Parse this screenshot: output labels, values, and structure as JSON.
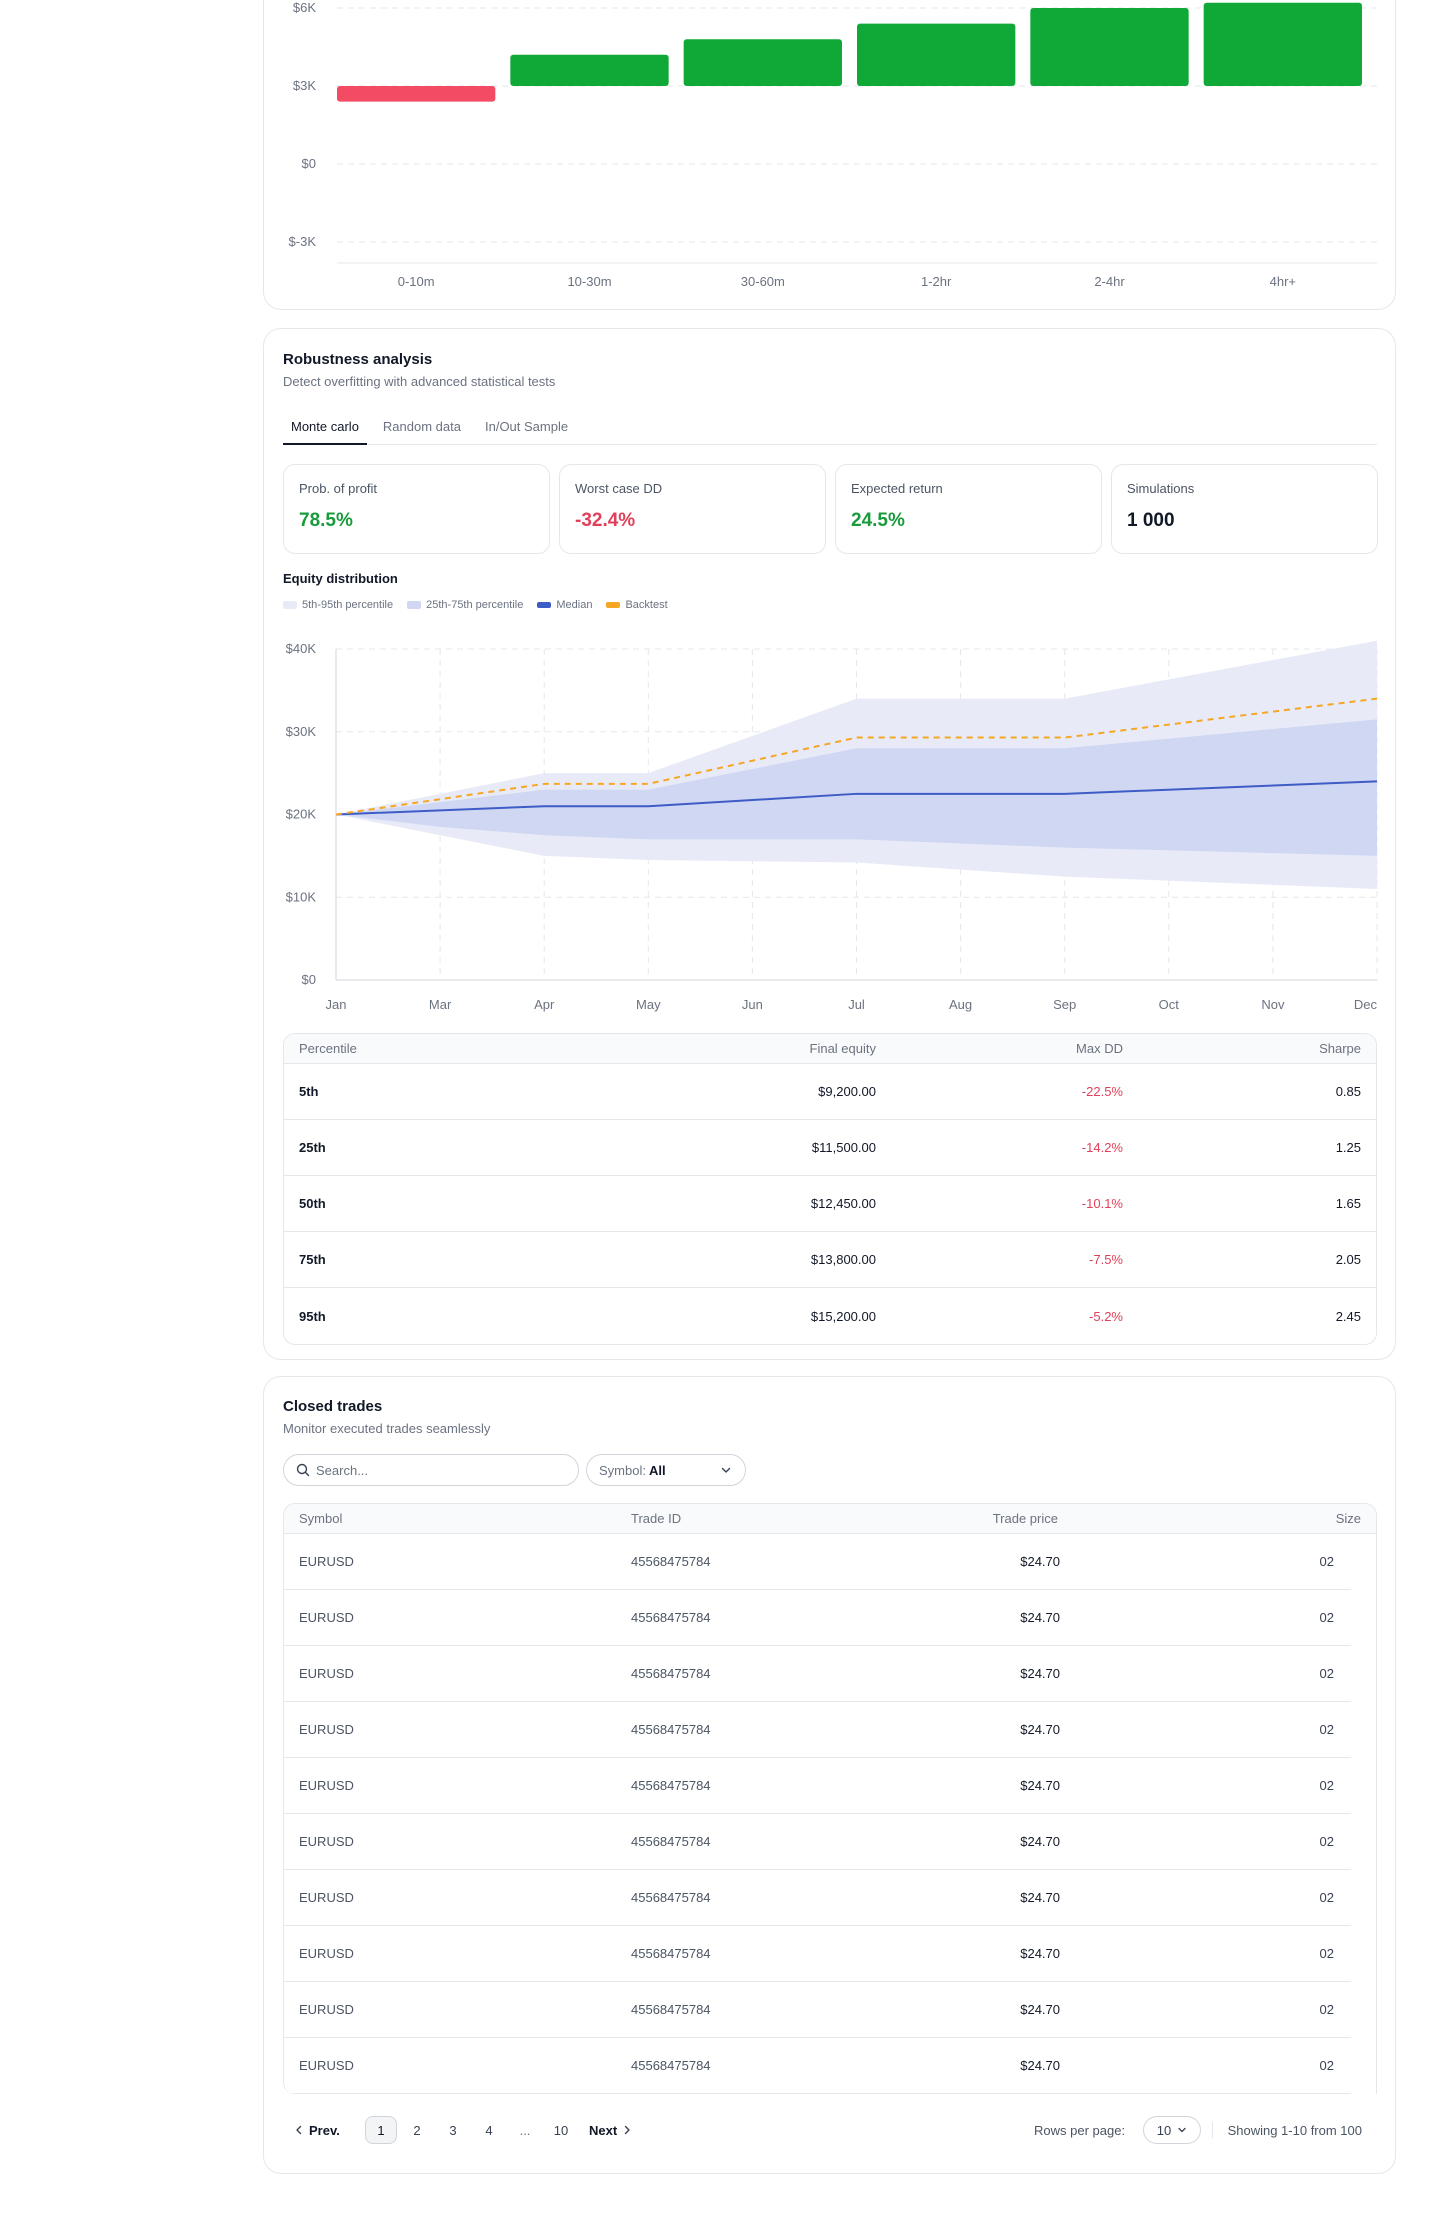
{
  "hold_chart": {
    "chart_data": {
      "type": "bar",
      "categories": [
        "0-10m",
        "10-30m",
        "30-60m",
        "1-2hr",
        "2-4hr",
        "4hr+"
      ],
      "values": [
        -600,
        1200,
        1800,
        2400,
        3000,
        3200
      ],
      "baseline": 3000,
      "ylim": [
        -3000,
        6000
      ],
      "yticks": [
        {
          "v": 6000,
          "label": "$6K"
        },
        {
          "v": 3000,
          "label": "$3K"
        },
        {
          "v": 0,
          "label": "$0"
        },
        {
          "v": -3000,
          "label": "$-3K"
        }
      ],
      "positive_color": "#10a937",
      "negative_color": "#f24b63",
      "grid": true
    }
  },
  "robustness": {
    "title": "Robustness analysis",
    "subtitle": "Detect overfitting with advanced statistical tests",
    "tabs": [
      {
        "label": "Monte carlo",
        "active": true
      },
      {
        "label": "Random data",
        "active": false
      },
      {
        "label": "In/Out Sample",
        "active": false
      }
    ],
    "stats": [
      {
        "label": "Prob. of profit",
        "value": "78.5%",
        "color": "#1a9b3b"
      },
      {
        "label": "Worst case DD",
        "value": "-32.4%",
        "color": "#e0405a"
      },
      {
        "label": "Expected return",
        "value": "24.5%",
        "color": "#1a9b3b"
      },
      {
        "label": "Simulations",
        "value": "1 000",
        "color": "#111827"
      }
    ],
    "section_label": "Equity distribution",
    "legend": [
      {
        "label": "5th-95th percentile",
        "color": "#e8ebf7"
      },
      {
        "label": "25th-75th percentile",
        "color": "#d0d7f3"
      },
      {
        "label": "Median",
        "color": "#3e5cc5"
      },
      {
        "label": "Backtest",
        "color": "#f5a623"
      }
    ],
    "chart_data": {
      "type": "area",
      "x_points": [
        0,
        1,
        2,
        3,
        4,
        5,
        6,
        7,
        8,
        9,
        10
      ],
      "x_labels": [
        "Jan",
        "Mar",
        "Apr",
        "May",
        "Jun",
        "Jul",
        "Aug",
        "Sep",
        "Oct",
        "Nov",
        "Dec"
      ],
      "ylim": [
        0,
        40000
      ],
      "yticks": [
        {
          "v": 40000,
          "label": "$40K"
        },
        {
          "v": 30000,
          "label": "$30K"
        },
        {
          "v": 20000,
          "label": "$20K"
        },
        {
          "v": 10000,
          "label": "$10K"
        },
        {
          "v": 0,
          "label": "$0"
        }
      ],
      "series": [
        {
          "name": "5th-95th percentile",
          "kind": "band",
          "x": [
            0,
            1,
            2,
            3,
            5,
            7,
            10
          ],
          "upper": [
            20000,
            22500,
            25000,
            25000,
            34000,
            34000,
            41000
          ],
          "lower": [
            20000,
            17500,
            15000,
            14500,
            14200,
            12500,
            11000
          ]
        },
        {
          "name": "25th-75th percentile",
          "kind": "band",
          "x": [
            0,
            1,
            2,
            3,
            5,
            7,
            10
          ],
          "upper": [
            20000,
            21500,
            23000,
            23000,
            28000,
            28000,
            31500
          ],
          "lower": [
            20000,
            18500,
            17500,
            17000,
            17000,
            16000,
            15000
          ]
        },
        {
          "name": "Median",
          "kind": "line",
          "x": [
            0,
            2,
            3,
            5,
            7,
            10
          ],
          "y": [
            20000,
            21000,
            21000,
            22500,
            22500,
            24000
          ]
        },
        {
          "name": "Backtest",
          "kind": "dashed",
          "x": [
            0,
            2,
            3,
            5,
            7,
            10
          ],
          "y": [
            20000,
            23700,
            23700,
            29300,
            29300,
            34000
          ]
        }
      ]
    },
    "table": {
      "headers": [
        "Percentile",
        "Final equity",
        "Max DD",
        "Sharpe"
      ],
      "rows": [
        [
          "5th",
          "$9,200.00",
          "-22.5%",
          "0.85"
        ],
        [
          "25th",
          "$11,500.00",
          "-14.2%",
          "1.25"
        ],
        [
          "50th",
          "$12,450.00",
          "-10.1%",
          "1.65"
        ],
        [
          "75th",
          "$13,800.00",
          "-7.5%",
          "2.05"
        ],
        [
          "95th",
          "$15,200.00",
          "-5.2%",
          "2.45"
        ]
      ],
      "dd_color": "#e0405a"
    }
  },
  "trades": {
    "title": "Closed trades",
    "subtitle": "Monitor executed trades seamlessly",
    "search_placeholder": "Search...",
    "symbol_filter_label": "Symbol:",
    "symbol_filter_value": "All",
    "headers": [
      "Symbol",
      "Trade ID",
      "Trade price",
      "Size"
    ],
    "rows": [
      [
        "EURUSD",
        "45568475784",
        "$24.70",
        "02"
      ],
      [
        "EURUSD",
        "45568475784",
        "$24.70",
        "02"
      ],
      [
        "EURUSD",
        "45568475784",
        "$24.70",
        "02"
      ],
      [
        "EURUSD",
        "45568475784",
        "$24.70",
        "02"
      ],
      [
        "EURUSD",
        "45568475784",
        "$24.70",
        "02"
      ],
      [
        "EURUSD",
        "45568475784",
        "$24.70",
        "02"
      ],
      [
        "EURUSD",
        "45568475784",
        "$24.70",
        "02"
      ],
      [
        "EURUSD",
        "45568475784",
        "$24.70",
        "02"
      ],
      [
        "EURUSD",
        "45568475784",
        "$24.70",
        "02"
      ],
      [
        "EURUSD",
        "45568475784",
        "$24.70",
        "02"
      ]
    ],
    "pager": {
      "prev": "Prev.",
      "next": "Next",
      "pages": [
        "1",
        "2",
        "3",
        "4",
        "...",
        "10"
      ],
      "active_page": "1",
      "rows_per_page_label": "Rows per page:",
      "rows_per_page_value": "10",
      "showing": "Showing 1-10 from 100"
    }
  }
}
